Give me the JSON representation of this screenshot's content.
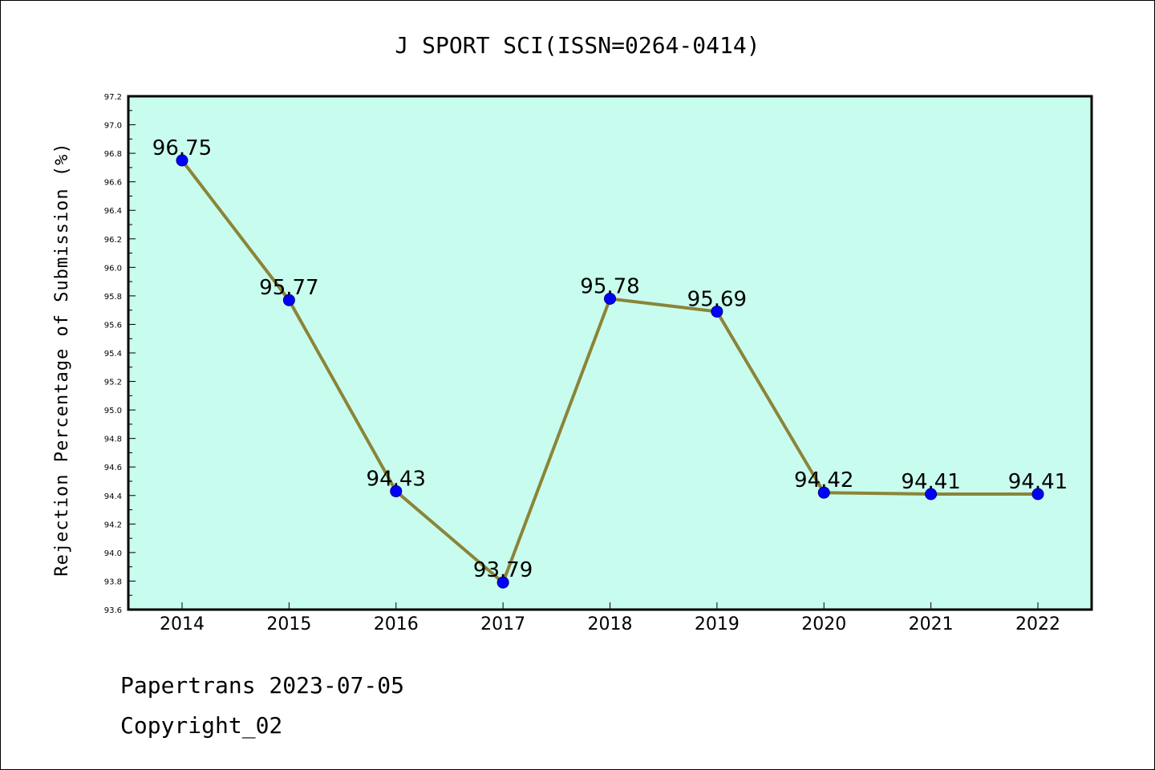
{
  "chart_data": {
    "type": "line",
    "title": "J SPORT SCI(ISSN=0264-0414)",
    "ylabel": "Rejection Percentage of Submission (%)",
    "xlabel": "",
    "x": [
      "2014",
      "2015",
      "2016",
      "2017",
      "2018",
      "2019",
      "2020",
      "2021",
      "2022"
    ],
    "values": [
      96.75,
      95.77,
      94.43,
      93.79,
      95.78,
      95.69,
      94.42,
      94.41,
      94.41
    ],
    "data_labels": [
      "96.75",
      "95.77",
      "94.43",
      "93.79",
      "95.78",
      "95.69",
      "94.42",
      "94.41",
      "94.41"
    ],
    "ylim": [
      93.6,
      97.2
    ],
    "yticks": [
      "93.6",
      "93.8",
      "94.0",
      "94.2",
      "94.4",
      "94.6",
      "94.8",
      "95.0",
      "95.2",
      "95.4",
      "95.6",
      "95.8",
      "96.0",
      "96.2",
      "96.4",
      "96.6",
      "96.8",
      "97.0",
      "97.2"
    ],
    "grid": false,
    "colors": {
      "plot_background": "#c8fcee",
      "line": "#8b8438",
      "marker": "#0000ff"
    }
  },
  "footer": {
    "line1": "Papertrans 2023-07-05",
    "line2": "Copyright_02"
  }
}
